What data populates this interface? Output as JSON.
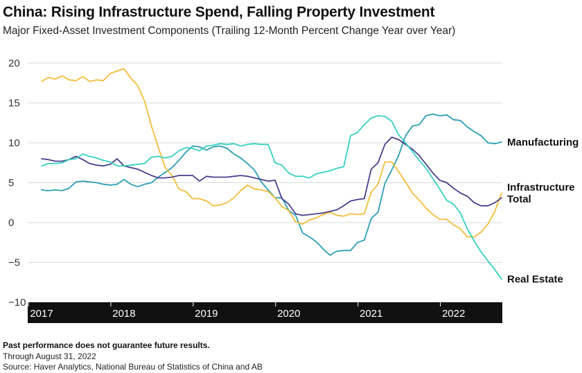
{
  "header": {
    "title": "China: Rising Infrastructure Spend, Falling Property Investment",
    "subtitle": "Major Fixed-Asset Investment Components (Trailing 12-Month Percent Change Year over Year)"
  },
  "footer": {
    "disclaimer": "Past performance does not guarantee future results.",
    "date_note": "Through August 31, 2022",
    "source": "Source: Haver Analytics, National Bureau of Statistics of China and AB"
  },
  "colors": {
    "manufacturing": "#2b9eb3",
    "infrastructure": "#f2bd3a",
    "total": "#4b3f8c",
    "real_estate": "#35d0c0",
    "axis_band": "#111111",
    "grid": "#d9d9d9"
  },
  "chart_data": {
    "type": "line",
    "title": "China: Rising Infrastructure Spend, Falling Property Investment",
    "subtitle": "Major Fixed-Asset Investment Components (Trailing 12-Month Percent Change Year over Year)",
    "x_tick_labels": [
      "2017",
      "2018",
      "2019",
      "2020",
      "2021",
      "2022"
    ],
    "x_range": [
      "2017-01",
      "2022-08"
    ],
    "ylim": [
      -10,
      20
    ],
    "yticks": [
      -10,
      -5,
      0,
      5,
      10,
      15,
      20
    ],
    "ytick_labels": [
      "−10",
      "−5",
      "0",
      "5",
      "10",
      "15",
      "20"
    ],
    "grid": "horizontal",
    "x": [
      "2017-01",
      "2017-02",
      "2017-03",
      "2017-04",
      "2017-05",
      "2017-06",
      "2017-07",
      "2017-08",
      "2017-09",
      "2017-10",
      "2017-11",
      "2017-12",
      "2018-01",
      "2018-02",
      "2018-03",
      "2018-04",
      "2018-05",
      "2018-06",
      "2018-07",
      "2018-08",
      "2018-09",
      "2018-10",
      "2018-11",
      "2018-12",
      "2019-01",
      "2019-02",
      "2019-03",
      "2019-04",
      "2019-05",
      "2019-06",
      "2019-07",
      "2019-08",
      "2019-09",
      "2019-10",
      "2019-11",
      "2019-12",
      "2020-01",
      "2020-02",
      "2020-03",
      "2020-04",
      "2020-05",
      "2020-06",
      "2020-07",
      "2020-08",
      "2020-09",
      "2020-10",
      "2020-11",
      "2020-12",
      "2021-01",
      "2021-02",
      "2021-03",
      "2021-04",
      "2021-05",
      "2021-06",
      "2021-07",
      "2021-08",
      "2021-09",
      "2021-10",
      "2021-11",
      "2021-12",
      "2022-01",
      "2022-02",
      "2022-03",
      "2022-04",
      "2022-05",
      "2022-06",
      "2022-07",
      "2022-08"
    ],
    "series": [
      {
        "name": "Manufacturing",
        "color_key": "manufacturing",
        "label_lines": [
          "Manufacturing"
        ],
        "values": [
          4.1,
          4.0,
          4.1,
          4.0,
          4.3,
          5.1,
          5.2,
          5.1,
          5.0,
          4.8,
          4.7,
          4.8,
          5.4,
          4.8,
          4.5,
          4.8,
          5.0,
          5.7,
          6.3,
          6.9,
          7.8,
          8.8,
          9.6,
          9.5,
          9.1,
          9.5,
          9.6,
          9.3,
          8.6,
          8.1,
          7.4,
          6.6,
          5.1,
          4.1,
          3.1,
          3.1,
          1.5,
          0.9,
          -1.3,
          -1.8,
          -2.4,
          -3.3,
          -4.1,
          -3.6,
          -3.5,
          -3.5,
          -2.5,
          -2.2,
          0.5,
          1.3,
          4.9,
          6.6,
          8.4,
          10.9,
          12.1,
          12.3,
          13.4,
          13.6,
          13.4,
          13.5,
          12.9,
          12.8,
          12.0,
          11.4,
          10.9,
          10.0,
          9.9,
          10.1
        ]
      },
      {
        "name": "Infrastructure",
        "color_key": "infrastructure",
        "label_lines": [
          "Infrastructure"
        ],
        "values": [
          17.7,
          18.2,
          18.0,
          18.4,
          17.9,
          17.8,
          18.3,
          17.7,
          17.9,
          17.8,
          18.7,
          19.0,
          19.3,
          18.1,
          17.2,
          15.2,
          12.1,
          9.4,
          6.9,
          5.9,
          4.2,
          3.9,
          3.0,
          3.0,
          2.7,
          2.1,
          2.2,
          2.5,
          3.1,
          4.0,
          4.7,
          4.2,
          4.1,
          3.9,
          3.1,
          2.0,
          1.5,
          0.1,
          -0.2,
          0.3,
          0.6,
          1.0,
          1.3,
          0.9,
          0.8,
          1.1,
          1.0,
          1.1,
          3.8,
          4.8,
          7.6,
          7.6,
          6.4,
          5.1,
          3.7,
          2.8,
          1.8,
          1.0,
          0.4,
          0.4,
          -0.3,
          -0.8,
          -1.8,
          -1.8,
          -1.2,
          -0.2,
          1.4,
          3.7
        ]
      },
      {
        "name": "Total",
        "color_key": "total",
        "label_lines": [
          "Total"
        ],
        "values": [
          8.0,
          7.9,
          7.7,
          7.7,
          7.9,
          8.3,
          7.9,
          7.4,
          7.2,
          7.1,
          7.3,
          8.0,
          7.1,
          6.9,
          6.7,
          6.3,
          5.9,
          5.6,
          5.6,
          5.7,
          5.9,
          5.9,
          5.9,
          5.2,
          5.8,
          5.7,
          5.7,
          5.7,
          5.8,
          5.9,
          5.8,
          5.6,
          5.4,
          5.2,
          5.3,
          3.0,
          2.3,
          1.1,
          0.9,
          1.0,
          1.1,
          1.2,
          1.4,
          1.6,
          2.1,
          2.7,
          2.9,
          3.0,
          6.7,
          7.5,
          9.8,
          10.7,
          10.4,
          9.8,
          9.2,
          8.4,
          7.3,
          6.2,
          5.3,
          5.0,
          4.3,
          3.7,
          3.3,
          2.5,
          2.1,
          2.1,
          2.5,
          3.1
        ]
      },
      {
        "name": "Real Estate",
        "color_key": "real_estate",
        "label_lines": [
          "Real Estate"
        ],
        "values": [
          7.1,
          7.4,
          7.4,
          7.5,
          7.9,
          8.0,
          8.6,
          8.3,
          8.1,
          7.8,
          7.6,
          7.1,
          7.1,
          7.2,
          7.3,
          7.4,
          8.2,
          8.3,
          8.1,
          8.3,
          9.0,
          9.4,
          9.3,
          9.0,
          9.6,
          9.7,
          9.9,
          9.8,
          9.9,
          9.6,
          9.8,
          9.9,
          9.8,
          9.8,
          7.5,
          7.2,
          6.2,
          5.8,
          5.8,
          5.6,
          6.1,
          6.3,
          6.5,
          6.8,
          7.0,
          10.9,
          11.3,
          12.3,
          13.1,
          13.4,
          13.3,
          12.7,
          11.0,
          10.0,
          8.9,
          7.8,
          6.8,
          5.5,
          4.2,
          2.8,
          2.3,
          1.2,
          -0.8,
          -2.3,
          -3.7,
          -4.8,
          -5.9,
          -7.1
        ]
      }
    ],
    "series_labels": [
      {
        "lines": [
          "Manufacturing"
        ],
        "anchor_value": 10.1
      },
      {
        "lines": [
          "Infrastructure",
          "Total"
        ],
        "anchor_value": 3.7
      },
      {
        "lines": [
          "Real Estate"
        ],
        "anchor_value": -7.1
      }
    ]
  }
}
